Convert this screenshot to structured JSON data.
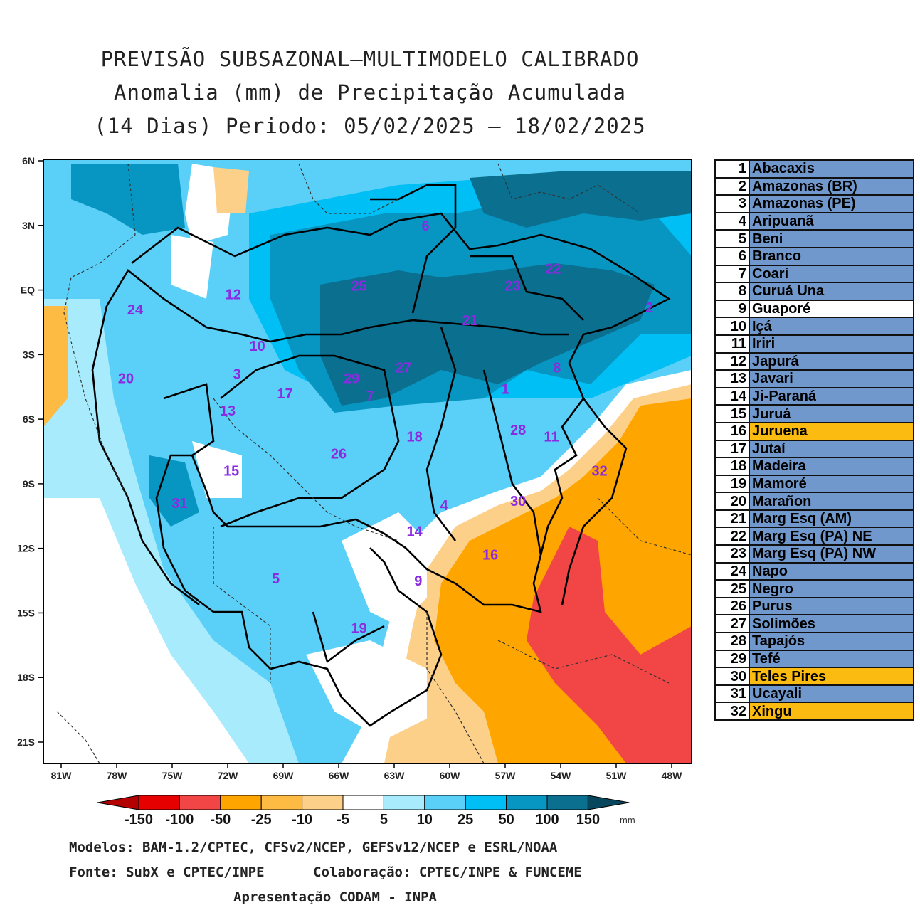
{
  "title": {
    "line1": "PREVISÃO SUBSAZONAL—MULTIMODELO CALIBRADO",
    "line2": "Anomalia (mm) de Precipitação Acumulada",
    "line3": "(14 Dias) Periodo: 05/02/2025 — 18/02/2025"
  },
  "axes": {
    "lat_labels": [
      "6N",
      "3N",
      "EQ",
      "3S",
      "6S",
      "9S",
      "12S",
      "15S",
      "18S",
      "21S"
    ],
    "lat_values": [
      6,
      3,
      0,
      -3,
      -6,
      -9,
      -12,
      -15,
      -18,
      -21
    ],
    "lon_labels": [
      "81W",
      "78W",
      "75W",
      "72W",
      "69W",
      "66W",
      "63W",
      "60W",
      "57W",
      "54W",
      "51W",
      "48W"
    ],
    "lon_values": [
      -81,
      -78,
      -75,
      -72,
      -69,
      -66,
      -63,
      -60,
      -57,
      -54,
      -51,
      -48
    ]
  },
  "colorbar": {
    "labels": [
      "-150",
      "-100",
      "-50",
      "-25",
      "-10",
      "-5",
      "5",
      "10",
      "25",
      "50",
      "100",
      "150"
    ],
    "colors": [
      "#e60000",
      "#f24545",
      "#ffa500",
      "#fdbb44",
      "#fdd089",
      "#ffffff",
      "#a8ebfd",
      "#5ad0f8",
      "#00bff5",
      "#0796c2",
      "#0b6f8f"
    ],
    "low_color": "#b30000",
    "high_color": "#07465c",
    "unit": "mm"
  },
  "basin_labels": [
    {
      "id": "1",
      "lon": -57.0,
      "lat": -4.6
    },
    {
      "id": "2",
      "lon": -49.2,
      "lat": -0.8
    },
    {
      "id": "3",
      "lon": -71.5,
      "lat": -3.9
    },
    {
      "id": "4",
      "lon": -60.3,
      "lat": -10.0
    },
    {
      "id": "5",
      "lon": -69.4,
      "lat": -13.4
    },
    {
      "id": "6",
      "lon": -61.3,
      "lat": 3.0
    },
    {
      "id": "7",
      "lon": -64.3,
      "lat": -4.9
    },
    {
      "id": "8",
      "lon": -54.2,
      "lat": -3.6
    },
    {
      "id": "9",
      "lon": -61.7,
      "lat": -13.5
    },
    {
      "id": "10",
      "lon": -70.4,
      "lat": -2.6
    },
    {
      "id": "11",
      "lon": -54.5,
      "lat": -6.8
    },
    {
      "id": "12",
      "lon": -71.7,
      "lat": -0.2
    },
    {
      "id": "13",
      "lon": -72.0,
      "lat": -5.6
    },
    {
      "id": "14",
      "lon": -61.9,
      "lat": -11.2
    },
    {
      "id": "15",
      "lon": -71.8,
      "lat": -8.4
    },
    {
      "id": "16",
      "lon": -57.8,
      "lat": -12.3
    },
    {
      "id": "17",
      "lon": -68.9,
      "lat": -4.8
    },
    {
      "id": "18",
      "lon": -61.9,
      "lat": -6.8
    },
    {
      "id": "19",
      "lon": -64.9,
      "lat": -15.7
    },
    {
      "id": "20",
      "lon": -77.5,
      "lat": -4.1
    },
    {
      "id": "21",
      "lon": -58.9,
      "lat": -1.4
    },
    {
      "id": "22",
      "lon": -54.4,
      "lat": 1.0
    },
    {
      "id": "23",
      "lon": -56.6,
      "lat": 0.2
    },
    {
      "id": "24",
      "lon": -77.0,
      "lat": -0.9
    },
    {
      "id": "25",
      "lon": -64.9,
      "lat": 0.2
    },
    {
      "id": "26",
      "lon": -66.0,
      "lat": -7.6
    },
    {
      "id": "27",
      "lon": -62.5,
      "lat": -3.6
    },
    {
      "id": "28",
      "lon": -56.3,
      "lat": -6.5
    },
    {
      "id": "29",
      "lon": -65.3,
      "lat": -4.1
    },
    {
      "id": "30",
      "lon": -56.3,
      "lat": -9.8
    },
    {
      "id": "31",
      "lon": -74.6,
      "lat": -9.9
    },
    {
      "id": "32",
      "lon": -51.9,
      "lat": -8.4
    }
  ],
  "basins": [
    {
      "num": "1",
      "name": "Abacaxis",
      "color": "#7098cc"
    },
    {
      "num": "2",
      "name": "Amazonas (BR)",
      "color": "#7098cc"
    },
    {
      "num": "3",
      "name": "Amazonas (PE)",
      "color": "#7098cc"
    },
    {
      "num": "4",
      "name": "Aripuanã",
      "color": "#7098cc"
    },
    {
      "num": "5",
      "name": "Beni",
      "color": "#7098cc"
    },
    {
      "num": "6",
      "name": "Branco",
      "color": "#7098cc"
    },
    {
      "num": "7",
      "name": "Coari",
      "color": "#7098cc"
    },
    {
      "num": "8",
      "name": "Curuá Una",
      "color": "#7098cc"
    },
    {
      "num": "9",
      "name": "Guaporé",
      "color": "#ffffff"
    },
    {
      "num": "10",
      "name": "Içá",
      "color": "#7098cc"
    },
    {
      "num": "11",
      "name": "Iriri",
      "color": "#7098cc"
    },
    {
      "num": "12",
      "name": "Japurá",
      "color": "#7098cc"
    },
    {
      "num": "13",
      "name": "Javari",
      "color": "#7098cc"
    },
    {
      "num": "14",
      "name": "Ji-Paraná",
      "color": "#7098cc"
    },
    {
      "num": "15",
      "name": "Juruá",
      "color": "#7098cc"
    },
    {
      "num": "16",
      "name": "Juruena",
      "color": "#fbbb10"
    },
    {
      "num": "17",
      "name": "Jutaí",
      "color": "#7098cc"
    },
    {
      "num": "18",
      "name": "Madeira",
      "color": "#7098cc"
    },
    {
      "num": "19",
      "name": "Mamoré",
      "color": "#7098cc"
    },
    {
      "num": "20",
      "name": "Marañon",
      "color": "#7098cc"
    },
    {
      "num": "21",
      "name": "Marg Esq (AM)",
      "color": "#7098cc"
    },
    {
      "num": "22",
      "name": "Marg Esq (PA) NE",
      "color": "#7098cc"
    },
    {
      "num": "23",
      "name": "Marg Esq (PA) NW",
      "color": "#7098cc"
    },
    {
      "num": "24",
      "name": "Napo",
      "color": "#7098cc"
    },
    {
      "num": "25",
      "name": "Negro",
      "color": "#7098cc"
    },
    {
      "num": "26",
      "name": "Purus",
      "color": "#7098cc"
    },
    {
      "num": "27",
      "name": "Solimões",
      "color": "#7098cc"
    },
    {
      "num": "28",
      "name": "Tapajós",
      "color": "#7098cc"
    },
    {
      "num": "29",
      "name": "Tefé",
      "color": "#7098cc"
    },
    {
      "num": "30",
      "name": "Teles Pires",
      "color": "#fbbb10"
    },
    {
      "num": "31",
      "name": "Ucayali",
      "color": "#7098cc"
    },
    {
      "num": "32",
      "name": "Xingu",
      "color": "#fbbb10"
    }
  ],
  "credits": {
    "line1": "Modelos: BAM-1.2/CPTEC, CFSv2/NCEP, GEFSv12/NCEP e ESRL/NOAA",
    "line2": "Fonte: SubX e CPTEC/INPE      Colaboração: CPTEC/INPE & FUNCEME",
    "line3": "Apresentação CODAM - INPA"
  }
}
